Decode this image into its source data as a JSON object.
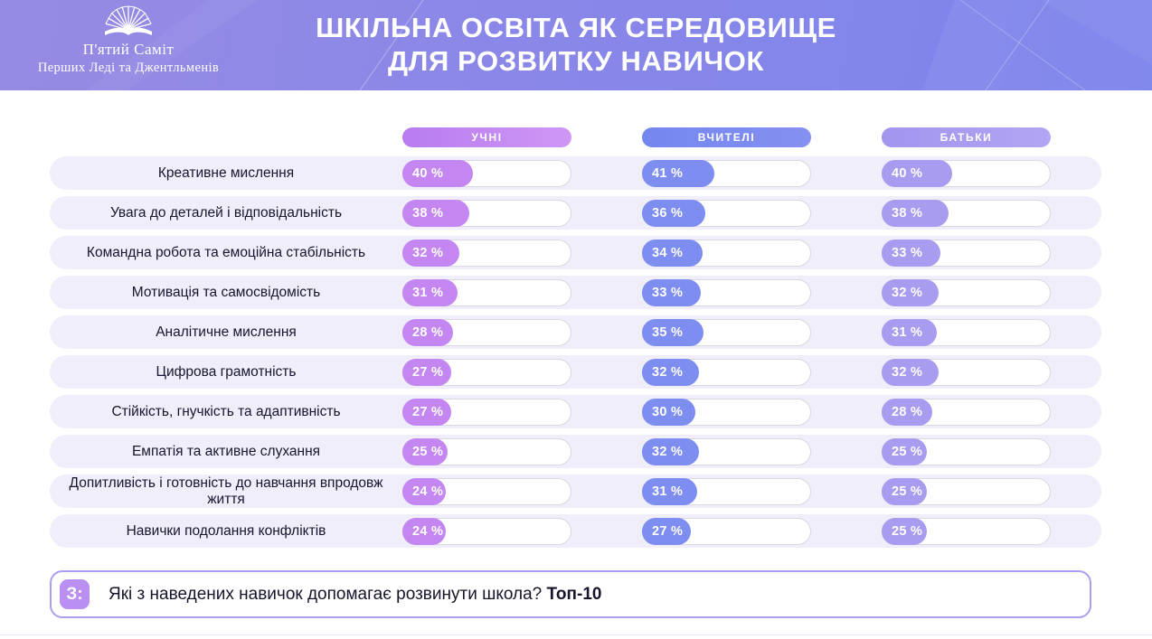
{
  "header": {
    "logo_line1": "П'ятий Саміт",
    "logo_line2": "Перших Леді та Джентльменів",
    "title_line1": "ШКІЛЬНА ОСВІТА ЯК СЕРЕДОВИЩЕ",
    "title_line2": "ДЛЯ РОЗВИТКУ НАВИЧОК"
  },
  "columns": [
    {
      "label": "УЧНІ",
      "pill_from": "#b87cf0",
      "pill_to": "#cf97f4",
      "fill": "#c487f2"
    },
    {
      "label": "ВЧИТЕЛІ",
      "pill_from": "#7487ef",
      "pill_to": "#8590f1",
      "fill": "#7e8df0"
    },
    {
      "label": "БАТЬКИ",
      "pill_from": "#a195ef",
      "pill_to": "#b2a5f3",
      "fill": "#a89cf0"
    }
  ],
  "chart_data": {
    "type": "bar",
    "title": "ШКІЛЬНА ОСВІТА ЯК СЕРЕДОВИЩЕ ДЛЯ РОЗВИТКУ НАВИЧОК",
    "unit": "%",
    "legend_position": "top",
    "axis_visible": false,
    "xlim": [
      0,
      100
    ],
    "categories": [
      "Креативне мислення",
      "Увага до деталей і відповідальність",
      "Командна робота та емоційна стабільність",
      "Мотивація та самосвідомість",
      "Аналітичне мислення",
      "Цифрова грамотність",
      "Стійкість, гнучкість та адаптивність",
      "Емпатія та активне слухання",
      "Допитливість і готовність до навчання впродовж життя",
      "Навички подолання конфліктів"
    ],
    "series": [
      {
        "name": "УЧНІ",
        "values": [
          40,
          38,
          32,
          31,
          28,
          27,
          27,
          25,
          24,
          24
        ]
      },
      {
        "name": "ВЧИТЕЛІ",
        "values": [
          41,
          36,
          34,
          33,
          35,
          32,
          30,
          32,
          31,
          27
        ]
      },
      {
        "name": "БАТЬКИ",
        "values": [
          40,
          38,
          33,
          32,
          31,
          32,
          28,
          25,
          25,
          25
        ]
      }
    ]
  },
  "question": {
    "badge": "З:",
    "text": "Які з наведених навичок допомагає розвинути школа?",
    "highlight": "Топ-10"
  },
  "colors": {
    "header_gradient_left": "#968be2",
    "header_gradient_right": "#7c84ec",
    "row_band": "#efeefa",
    "students_fill": "#c487f2",
    "teachers_fill": "#7e8df0",
    "parents_fill": "#a89cf0",
    "question_border": "#ab9ff0",
    "question_badge": "#b98ff2",
    "label_text": "#16162e"
  }
}
